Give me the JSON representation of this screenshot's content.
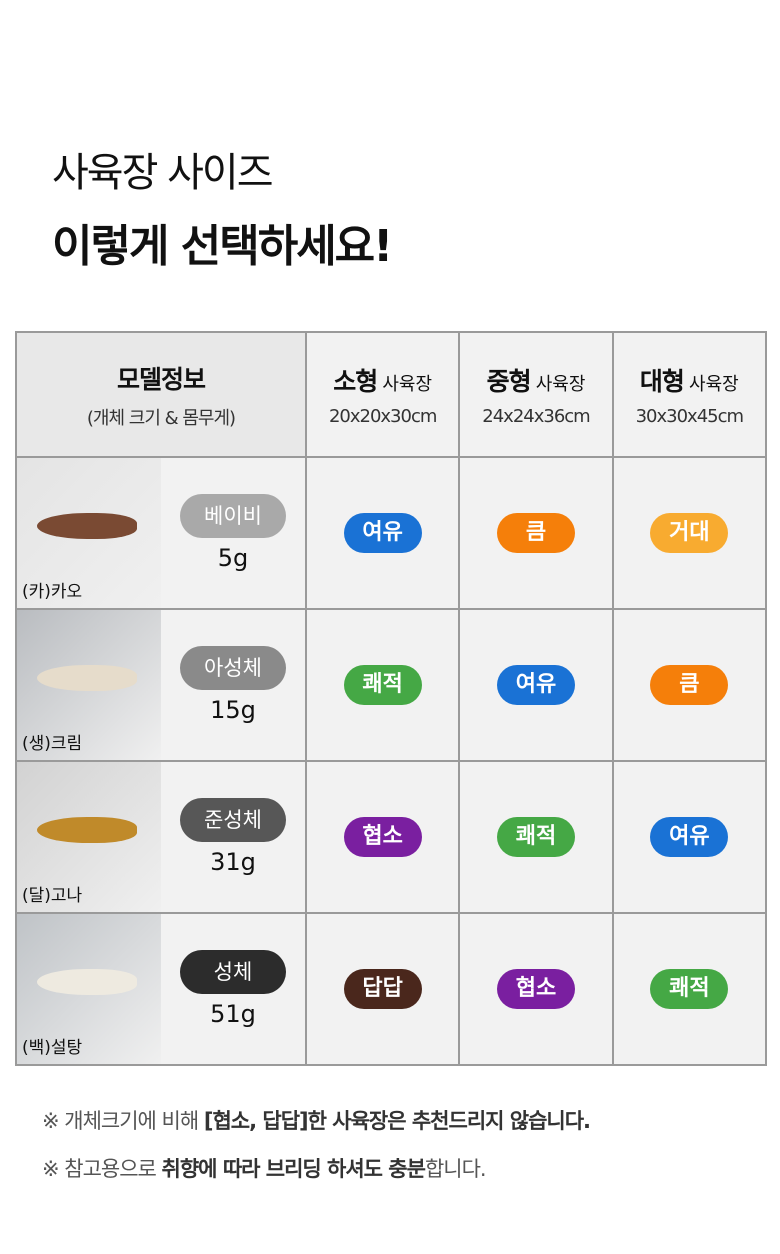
{
  "title": {
    "line1": "사육장 사이즈",
    "line2": "이렇게 선택하세요!"
  },
  "header": {
    "model_title": "모델정보",
    "model_sub": "(개체 크기 & 몸무게)",
    "columns": [
      {
        "type": "소형",
        "suffix": "사육장",
        "size": "20x20x30cm"
      },
      {
        "type": "중형",
        "suffix": "사육장",
        "size": "24x24x36cm"
      },
      {
        "type": "대형",
        "suffix": "사육장",
        "size": "30x30x45cm"
      }
    ]
  },
  "rows": [
    {
      "name": "(카)카오",
      "stage": "베이비",
      "stage_color": "#a9a9a9",
      "weight": "5g",
      "photo_bg": "#e4e4e4",
      "gecko_color": "#7a4a33",
      "ratings": [
        {
          "label": "여유",
          "color": "#1a72d5"
        },
        {
          "label": "큼",
          "color": "#f57f0a"
        },
        {
          "label": "거대",
          "color": "#f8ab30"
        }
      ]
    },
    {
      "name": "(생)크림",
      "stage": "아성체",
      "stage_color": "#8a8a8a",
      "weight": "15g",
      "photo_bg": "#b9bcc0",
      "gecko_color": "#e6dccb",
      "ratings": [
        {
          "label": "쾌적",
          "color": "#45a845"
        },
        {
          "label": "여유",
          "color": "#1a72d5"
        },
        {
          "label": "큼",
          "color": "#f57f0a"
        }
      ]
    },
    {
      "name": "(달)고나",
      "stage": "준성체",
      "stage_color": "#575757",
      "weight": "31g",
      "photo_bg": "#d2d2d2",
      "gecko_color": "#c08a2a",
      "ratings": [
        {
          "label": "협소",
          "color": "#7a1fa0"
        },
        {
          "label": "쾌적",
          "color": "#45a845"
        },
        {
          "label": "여유",
          "color": "#1a72d5"
        }
      ]
    },
    {
      "name": "(백)설탕",
      "stage": "성체",
      "stage_color": "#2c2c2c",
      "weight": "51g",
      "photo_bg": "#bfc3c7",
      "gecko_color": "#eeeae0",
      "ratings": [
        {
          "label": "답답",
          "color": "#4a271c"
        },
        {
          "label": "협소",
          "color": "#7a1fa0"
        },
        {
          "label": "쾌적",
          "color": "#45a845"
        }
      ]
    }
  ],
  "notes": [
    {
      "prefix": "※ 개체크기에 비해 ",
      "bold": "[협소, 답답]",
      "rest": "한 사육장은 추천드리지 않습니다."
    },
    {
      "prefix": "※ 참고용으로 ",
      "bold": "취향에 따라 브리딩 하셔도 충분",
      "rest": "합니다."
    }
  ]
}
